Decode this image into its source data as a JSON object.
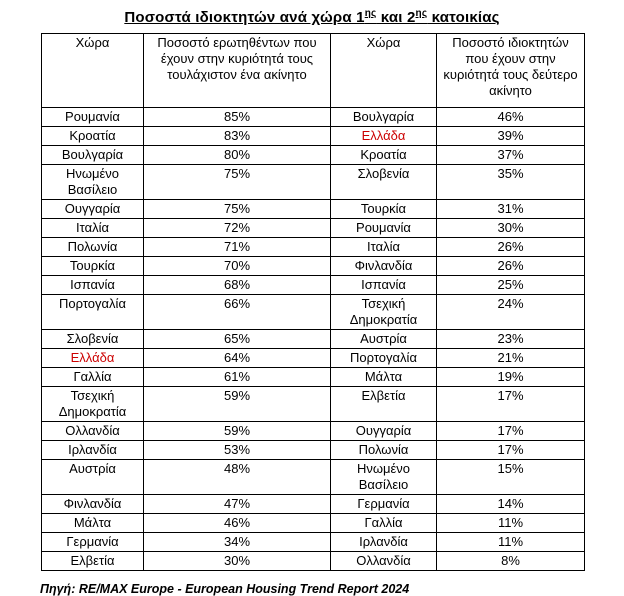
{
  "title": {
    "part1": "Ποσοστά ιδιοκτητών ανά χώρα 1",
    "sup1": "ης",
    "part2": " και 2",
    "sup2": "ης",
    "part3": " κατοικίας"
  },
  "table": {
    "headers": [
      "Χώρα",
      "Ποσοστό ερωτηθέντων που έχουν στην κυριότητά τους τουλάχιστον ένα ακίνητο",
      "Χώρα",
      "Ποσοστό ιδιοκτητών που έχουν στην κυριότητά τους δεύτερο ακίνητο"
    ],
    "rows": [
      {
        "l_country": "Ρουμανία",
        "l_pct": "85%",
        "l_red": false,
        "r_country": "Βουλγαρία",
        "r_pct": "46%",
        "r_red": false,
        "tall": false
      },
      {
        "l_country": "Κροατία",
        "l_pct": "83%",
        "l_red": false,
        "r_country": "Ελλάδα",
        "r_pct": "39%",
        "r_red": true,
        "tall": false
      },
      {
        "l_country": "Βουλγαρία",
        "l_pct": "80%",
        "l_red": false,
        "r_country": "Κροατία",
        "r_pct": "37%",
        "r_red": false,
        "tall": false
      },
      {
        "l_country": "Ηνωμένο Βασίλειο",
        "l_pct": "75%",
        "l_red": false,
        "r_country": "Σλοβενία",
        "r_pct": "35%",
        "r_red": false,
        "tall": true
      },
      {
        "l_country": "Ουγγαρία",
        "l_pct": "75%",
        "l_red": false,
        "r_country": "Τουρκία",
        "r_pct": "31%",
        "r_red": false,
        "tall": false
      },
      {
        "l_country": "Ιταλία",
        "l_pct": "72%",
        "l_red": false,
        "r_country": "Ρουμανία",
        "r_pct": "30%",
        "r_red": false,
        "tall": false
      },
      {
        "l_country": "Πολωνία",
        "l_pct": "71%",
        "l_red": false,
        "r_country": "Ιταλία",
        "r_pct": "26%",
        "r_red": false,
        "tall": false
      },
      {
        "l_country": "Τουρκία",
        "l_pct": "70%",
        "l_red": false,
        "r_country": "Φινλανδία",
        "r_pct": "26%",
        "r_red": false,
        "tall": false
      },
      {
        "l_country": "Ισπανία",
        "l_pct": "68%",
        "l_red": false,
        "r_country": "Ισπανία",
        "r_pct": "25%",
        "r_red": false,
        "tall": false
      },
      {
        "l_country": "Πορτογαλία",
        "l_pct": "66%",
        "l_red": false,
        "r_country": "Τσεχική Δημοκρατία",
        "r_pct": "24%",
        "r_red": false,
        "tall": true
      },
      {
        "l_country": "Σλοβενία",
        "l_pct": "65%",
        "l_red": false,
        "r_country": "Αυστρία",
        "r_pct": "23%",
        "r_red": false,
        "tall": false
      },
      {
        "l_country": "Ελλάδα",
        "l_pct": "64%",
        "l_red": true,
        "r_country": "Πορτογαλία",
        "r_pct": "21%",
        "r_red": false,
        "tall": false
      },
      {
        "l_country": "Γαλλία",
        "l_pct": "61%",
        "l_red": false,
        "r_country": "Μάλτα",
        "r_pct": "19%",
        "r_red": false,
        "tall": false
      },
      {
        "l_country": "Τσεχική Δημοκρατία",
        "l_pct": "59%",
        "l_red": false,
        "r_country": "Ελβετία",
        "r_pct": "17%",
        "r_red": false,
        "tall": true
      },
      {
        "l_country": "Ολλανδία",
        "l_pct": "59%",
        "l_red": false,
        "r_country": "Ουγγαρία",
        "r_pct": "17%",
        "r_red": false,
        "tall": false
      },
      {
        "l_country": "Ιρλανδία",
        "l_pct": "53%",
        "l_red": false,
        "r_country": "Πολωνία",
        "r_pct": "17%",
        "r_red": false,
        "tall": false
      },
      {
        "l_country": "Αυστρία",
        "l_pct": "48%",
        "l_red": false,
        "r_country": "Ηνωμένο Βασίλειο",
        "r_pct": "15%",
        "r_red": false,
        "tall": true
      },
      {
        "l_country": "Φινλανδία",
        "l_pct": "47%",
        "l_red": false,
        "r_country": "Γερμανία",
        "r_pct": "14%",
        "r_red": false,
        "tall": false
      },
      {
        "l_country": "Μάλτα",
        "l_pct": "46%",
        "l_red": false,
        "r_country": "Γαλλία",
        "r_pct": "11%",
        "r_red": false,
        "tall": false
      },
      {
        "l_country": "Γερμανία",
        "l_pct": "34%",
        "l_red": false,
        "r_country": "Ιρλανδία",
        "r_pct": "11%",
        "r_red": false,
        "tall": false
      },
      {
        "l_country": "Ελβετία",
        "l_pct": "30%",
        "l_red": false,
        "r_country": "Ολλανδία",
        "r_pct": "8%",
        "r_red": false,
        "tall": false
      }
    ]
  },
  "footer": {
    "source": "Πηγή: RE/MAX Europe - European Housing Trend Report 2024"
  },
  "colors": {
    "highlight_red": "#cc0000",
    "border": "#000000"
  }
}
